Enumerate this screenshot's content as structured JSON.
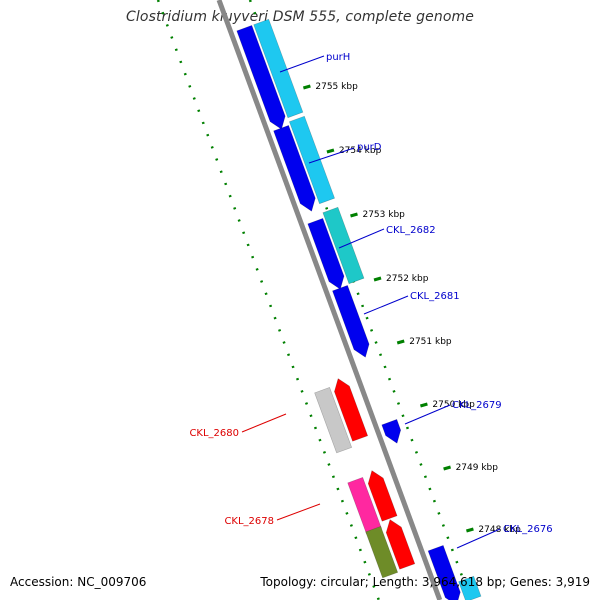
{
  "title": "Clostridium kluyveri DSM 555, complete genome",
  "footer": {
    "accession": "Accession: NC_009706",
    "topology": "Topology: circular; Length: 3,964,618 bp; Genes: 3,919"
  },
  "colors": {
    "backbone": "#888888",
    "ticks": "#008000",
    "dark_blue": "#0000ee",
    "light_blue": "#1ec8f0",
    "teal": "#1ec8c8",
    "red": "#ff0000",
    "gray": "#c8c8c8",
    "pink": "#ff28a0",
    "olive": "#6e8c28",
    "label_blue": "#0000cc",
    "label_red": "#dd0000"
  },
  "tick_labels": [
    "2755 kbp",
    "2754 kbp",
    "2753 kbp",
    "2752 kbp",
    "2751 kbp",
    "2750 kbp",
    "2749 kbp",
    "2748 kbp"
  ],
  "gene_labels": [
    {
      "text": "purH",
      "strand": "forward"
    },
    {
      "text": "purD",
      "strand": "forward"
    },
    {
      "text": "CKL_2682",
      "strand": "forward"
    },
    {
      "text": "CKL_2681",
      "strand": "forward"
    },
    {
      "text": "CKL_2679",
      "strand": "forward"
    },
    {
      "text": "CKL_2676",
      "strand": "forward"
    },
    {
      "text": "CKL_2680",
      "strand": "reverse"
    },
    {
      "text": "CKL_2678",
      "strand": "reverse"
    }
  ]
}
